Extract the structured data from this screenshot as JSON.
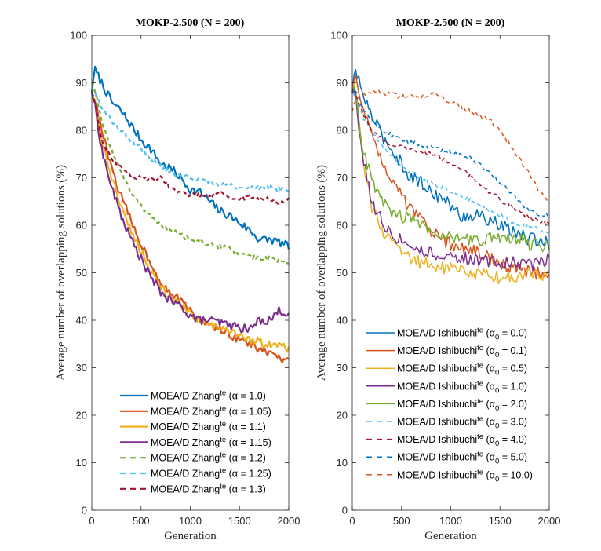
{
  "chart_data": [
    {
      "type": "line",
      "title": "MOKP-2.500 (N = 200)",
      "xlabel": "Generation",
      "ylabel": "Average number of overlapping solutions (%)",
      "xlim": [
        0,
        2000
      ],
      "ylim": [
        0,
        100
      ],
      "xticks": [
        0,
        500,
        1000,
        1500,
        2000
      ],
      "yticks": [
        0,
        10,
        20,
        30,
        40,
        50,
        60,
        70,
        80,
        90,
        100
      ],
      "grid": false,
      "legend_position": "bottom-center",
      "x": [
        0,
        25,
        100,
        200,
        300,
        400,
        500,
        600,
        700,
        800,
        900,
        1000,
        1100,
        1200,
        1300,
        1400,
        1500,
        1600,
        1700,
        1800,
        1900,
        2000
      ],
      "series": [
        {
          "name": "MOEA/D Zhang",
          "sup": "te",
          "param": "(α = 1.0)",
          "color": "#0072BD",
          "style": "solid",
          "width": 2.2,
          "values": [
            88,
            93,
            90,
            86,
            84,
            81,
            78,
            76,
            73,
            72,
            70,
            67.5,
            67,
            65,
            63,
            62,
            60.5,
            59,
            57,
            57,
            56.5,
            55.5
          ]
        },
        {
          "name": "MOEA/D Zhang",
          "sup": "te",
          "param": "(α = 1.05)",
          "color": "#D95319",
          "style": "solid",
          "width": 2.2,
          "values": [
            88,
            87,
            80,
            72,
            66,
            61,
            56,
            52,
            48,
            46,
            44,
            42,
            40,
            39,
            38,
            37,
            36,
            35,
            34,
            33,
            32,
            31
          ]
        },
        {
          "name": "MOEA/D Zhang",
          "sup": "te",
          "param": "(α = 1.1)",
          "color": "#EDB120",
          "style": "solid",
          "width": 2.2,
          "values": [
            88,
            87,
            78,
            70,
            64,
            59,
            54.5,
            50,
            47,
            45,
            43,
            41.5,
            40,
            39,
            38,
            37.5,
            37,
            36,
            35.5,
            35,
            34.5,
            34
          ]
        },
        {
          "name": "MOEA/D Zhang",
          "sup": "te",
          "param": "(α = 1.15)",
          "color": "#7E2F8E",
          "style": "solid",
          "width": 2.2,
          "values": [
            88,
            86,
            76,
            68,
            62,
            57,
            53,
            49,
            46,
            44,
            43,
            41,
            40,
            40,
            39.5,
            39,
            38.5,
            38,
            40,
            40,
            42,
            41.5
          ]
        },
        {
          "name": "MOEA/D Zhang",
          "sup": "te",
          "param": "(α = 1.2)",
          "color": "#77AC30",
          "style": "dashed",
          "width": 2.2,
          "values": [
            90,
            89,
            82,
            76,
            71,
            67,
            64,
            62,
            60,
            59,
            58,
            57,
            56.5,
            56,
            55.5,
            55,
            54,
            53.5,
            53,
            53,
            52.5,
            52.2
          ]
        },
        {
          "name": "MOEA/D Zhang",
          "sup": "te",
          "param": "(α = 1.25)",
          "color": "#4DBEEE",
          "style": "dashed",
          "width": 2.2,
          "values": [
            89,
            88,
            85,
            82,
            80,
            78,
            76,
            74,
            72.5,
            71,
            70.5,
            70,
            69.5,
            69,
            68.5,
            68.5,
            68,
            68,
            68,
            68,
            67.5,
            67.5
          ]
        },
        {
          "name": "MOEA/D Zhang",
          "sup": "te",
          "param": "(α = 1.3)",
          "color": "#A2142F",
          "style": "dashed",
          "width": 2.2,
          "values": [
            88,
            87,
            78,
            74,
            72,
            70,
            70,
            69.5,
            70,
            68,
            67,
            66.5,
            66.5,
            66,
            67,
            66,
            65.5,
            66,
            65.5,
            65.5,
            65,
            65.5
          ]
        }
      ]
    },
    {
      "type": "line",
      "title": "MOKP-2.500 (N = 200)",
      "xlabel": "Generation",
      "ylabel": "Average number of overlapping solutions (%)",
      "xlim": [
        0,
        2000
      ],
      "ylim": [
        0,
        100
      ],
      "xticks": [
        0,
        500,
        1000,
        1500,
        2000
      ],
      "yticks": [
        0,
        10,
        20,
        30,
        40,
        50,
        60,
        70,
        80,
        90,
        100
      ],
      "grid": false,
      "legend_position": "bottom-center",
      "x": [
        0,
        25,
        100,
        200,
        300,
        400,
        500,
        600,
        700,
        800,
        900,
        1000,
        1100,
        1200,
        1300,
        1400,
        1500,
        1600,
        1700,
        1800,
        1900,
        2000
      ],
      "series": [
        {
          "name": "MOEA/D Ishibuchi",
          "sup": "te",
          "sub": "0",
          "param_value": "0.0",
          "color": "#0072BD",
          "style": "solid",
          "width": 1.5,
          "values": [
            88,
            93,
            88,
            83,
            79,
            76,
            73,
            70,
            69,
            67,
            66,
            64,
            62,
            62,
            62,
            61,
            60,
            59,
            58,
            57,
            57,
            56
          ]
        },
        {
          "name": "MOEA/D Ishibuchi",
          "sup": "te",
          "sub": "0",
          "param_value": "0.1",
          "color": "#D95319",
          "style": "solid",
          "width": 1.5,
          "values": [
            88,
            91,
            86,
            79,
            74,
            70,
            66,
            63,
            61,
            59,
            57,
            56,
            55,
            55,
            54,
            53,
            52,
            51,
            51,
            50,
            50,
            48.5
          ]
        },
        {
          "name": "MOEA/D Ishibuchi",
          "sup": "te",
          "sub": "0",
          "param_value": "0.5",
          "color": "#EDB120",
          "style": "solid",
          "width": 1.5,
          "values": [
            88,
            90,
            75,
            64,
            59,
            56,
            54,
            53,
            52,
            52,
            51,
            51,
            50.5,
            50,
            49.5,
            49.5,
            49,
            49,
            49,
            49.5,
            49,
            50
          ]
        },
        {
          "name": "MOEA/D Ishibuchi",
          "sup": "te",
          "sub": "0",
          "param_value": "1.0",
          "color": "#7E2F8E",
          "style": "solid",
          "width": 1.5,
          "values": [
            88,
            89,
            75,
            65,
            61,
            58,
            57,
            56,
            55,
            54,
            53.5,
            53.5,
            53,
            53,
            52.5,
            52.5,
            52,
            52,
            52,
            51.5,
            52,
            53.5
          ]
        },
        {
          "name": "MOEA/D Ishibuchi",
          "sup": "te",
          "sub": "0",
          "param_value": "2.0",
          "color": "#77AC30",
          "style": "solid",
          "width": 1.5,
          "values": [
            88,
            89,
            77,
            69,
            65,
            63,
            62,
            61,
            60,
            59,
            58,
            57.5,
            57,
            57,
            57,
            57.5,
            57,
            57,
            57,
            56,
            56,
            55.5
          ]
        },
        {
          "name": "MOEA/D Ishibuchi",
          "sup": "te",
          "sub": "0",
          "param_value": "3.0",
          "color": "#4DBEEE",
          "style": "dashed",
          "width": 1.5,
          "values": [
            88,
            87,
            83,
            80,
            77,
            74.5,
            72,
            71,
            70,
            69,
            68,
            67,
            66,
            65.5,
            64,
            63,
            62,
            61,
            60,
            60,
            59,
            58
          ]
        },
        {
          "name": "MOEA/D Ishibuchi",
          "sup": "te",
          "sub": "0",
          "param_value": "4.0",
          "color": "#A2142F",
          "style": "dashed",
          "width": 1.5,
          "values": [
            88,
            88,
            84,
            80,
            78,
            77,
            76.5,
            76,
            75.5,
            75,
            74,
            73,
            72,
            70.5,
            68.5,
            67,
            65.5,
            64,
            63,
            61.5,
            61,
            60
          ]
        },
        {
          "name": "MOEA/D Ishibuchi",
          "sup": "te",
          "sub": "0",
          "param_value": "5.0",
          "color": "#0072BD",
          "style": "dashed",
          "width": 1.5,
          "values": [
            88,
            89,
            85,
            82,
            80,
            79,
            78,
            77.5,
            77,
            76.5,
            76,
            75.5,
            75,
            74,
            72.5,
            71,
            69,
            67,
            65,
            63,
            62,
            62.5
          ]
        },
        {
          "name": "MOEA/D Ishibuchi",
          "sup": "te",
          "sub": "0",
          "param_value": "10.0",
          "color": "#D95319",
          "style": "dashed",
          "width": 1.5,
          "values": [
            84,
            86,
            87,
            88.5,
            88,
            87.5,
            87,
            87,
            87,
            88,
            87,
            86,
            85,
            84,
            83,
            82,
            80,
            77,
            74,
            71,
            67,
            65
          ]
        }
      ]
    }
  ]
}
